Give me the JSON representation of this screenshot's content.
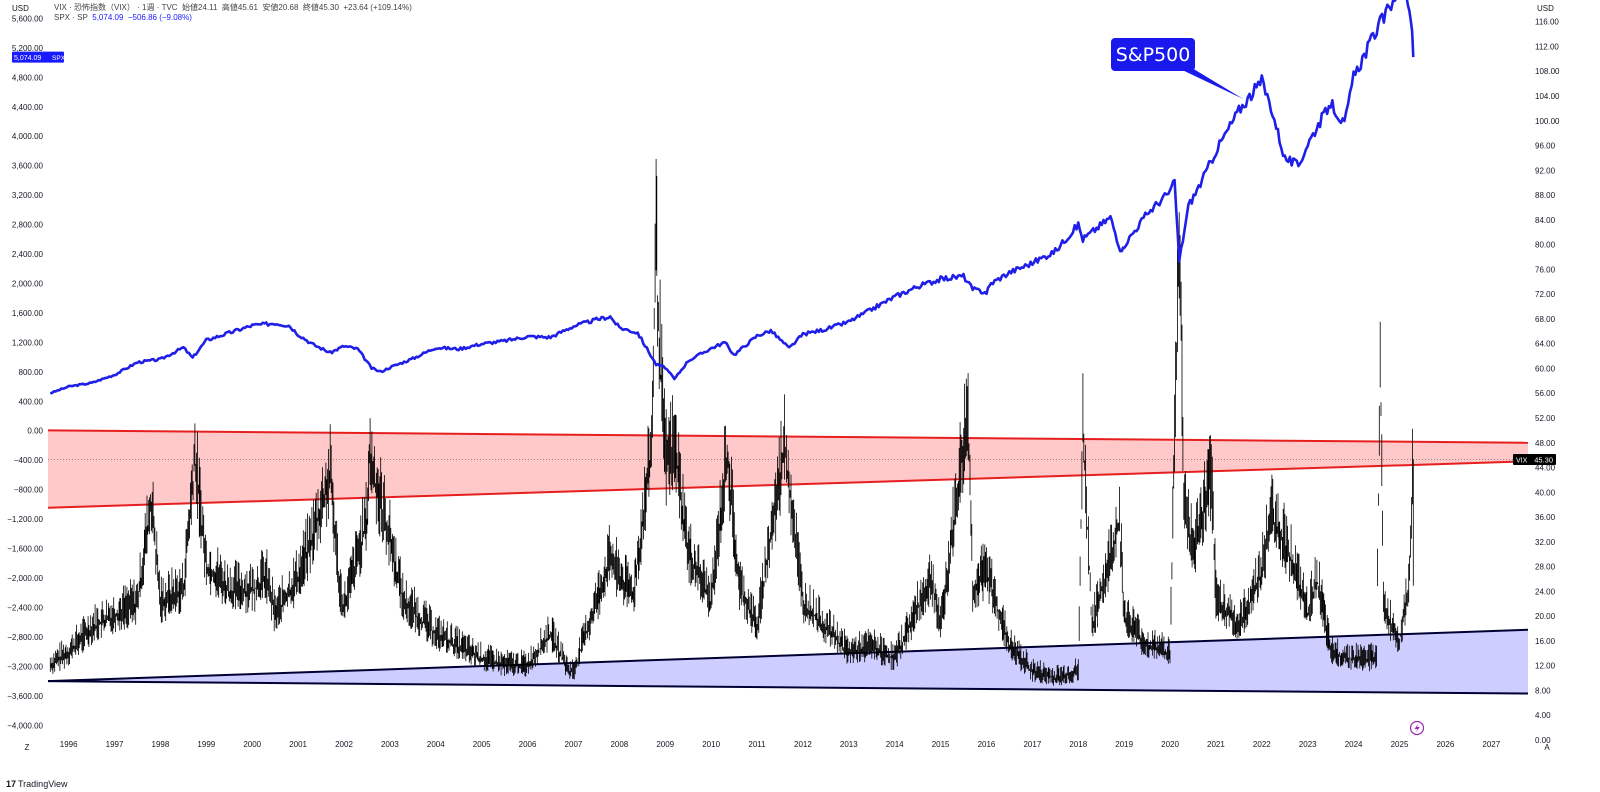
{
  "header": {
    "vix_line": {
      "symbol": "VIX · 恐怖指数（VIX） · 1週 · TVC",
      "open_label": "始値",
      "open": "24.11",
      "high_label": "高値",
      "high": "45.61",
      "low_label": "安値",
      "low": "20.68",
      "close_label": "終値",
      "close": "45.30",
      "change": "+23.64 (+109.14%)"
    },
    "spx_line": {
      "symbol": "SPX · SP",
      "value": "5,074.09",
      "change": "−506.86 (−9.08%)"
    }
  },
  "axes": {
    "left_unit": "USD",
    "right_unit": "USD",
    "left_badge_value": "5,074.09",
    "left_badge_symbol": "SPX",
    "right_badge_symbol": "VIX",
    "right_badge_value": "45.30",
    "bottom_left_label": "Z",
    "bottom_right_label": "A"
  },
  "annotation": {
    "text": "S&P500"
  },
  "branding": {
    "logo_glyph": "17",
    "name": "TradingView"
  },
  "colors": {
    "spx": "#1f1fe8",
    "vix": "#000000",
    "upper_channel": "#e61e1e",
    "upper_fill": "#ffbfbf",
    "lower_channel": "#000033",
    "lower_fill": "#c4c4ff"
  },
  "chart_data": {
    "type": "line",
    "x_ticks": [
      "1996",
      "1997",
      "1998",
      "1999",
      "2000",
      "2001",
      "2002",
      "2003",
      "2004",
      "2005",
      "2006",
      "2007",
      "2008",
      "2009",
      "2010",
      "2011",
      "2012",
      "2013",
      "2014",
      "2015",
      "2016",
      "2017",
      "2018",
      "2019",
      "2020",
      "2021",
      "2022",
      "2023",
      "2024",
      "2025",
      "2026",
      "2027"
    ],
    "left_axis": {
      "ticks": [
        "5,600.00",
        "5,200.00",
        "4,800.00",
        "4,400.00",
        "4,000.00",
        "3,600.00",
        "3,200.00",
        "2,800.00",
        "2,400.00",
        "2,000.00",
        "1,600.00",
        "1,200.00",
        "800.00",
        "400.00",
        "0.00",
        "−400.00",
        "−800.00",
        "−1,200.00",
        "−1,600.00",
        "−2,000.00",
        "−2,400.00",
        "−2,800.00",
        "−3,200.00",
        "−3,600.00",
        "−4,000.00"
      ],
      "range": [
        -4200,
        5850
      ]
    },
    "right_axis": {
      "ticks": [
        "116.00",
        "112.00",
        "108.00",
        "104.00",
        "100.00",
        "96.00",
        "92.00",
        "88.00",
        "84.00",
        "80.00",
        "76.00",
        "72.00",
        "68.00",
        "64.00",
        "60.00",
        "56.00",
        "52.00",
        "48.00",
        "44.00",
        "40.00",
        "36.00",
        "32.00",
        "28.00",
        "24.00",
        "20.00",
        "16.00",
        "12.00",
        "8.00",
        "4.00",
        "0.00"
      ],
      "range": [
        0,
        119.5
      ]
    },
    "series": [
      {
        "name": "SPX",
        "axis": "left",
        "points": [
          [
            1995.6,
            510
          ],
          [
            1996.0,
            600
          ],
          [
            1996.5,
            650
          ],
          [
            1997.0,
            760
          ],
          [
            1997.5,
            930
          ],
          [
            1998.0,
            970
          ],
          [
            1998.5,
            1130
          ],
          [
            1998.7,
            990
          ],
          [
            1999.0,
            1230
          ],
          [
            1999.5,
            1330
          ],
          [
            2000.0,
            1430
          ],
          [
            2000.5,
            1460
          ],
          [
            2000.8,
            1430
          ],
          [
            2001.0,
            1310
          ],
          [
            2001.3,
            1180
          ],
          [
            2001.7,
            1060
          ],
          [
            2002.0,
            1150
          ],
          [
            2002.3,
            1110
          ],
          [
            2002.6,
            850
          ],
          [
            2002.8,
            800
          ],
          [
            2003.0,
            860
          ],
          [
            2003.5,
            980
          ],
          [
            2004.0,
            1130
          ],
          [
            2004.5,
            1110
          ],
          [
            2005.0,
            1180
          ],
          [
            2005.5,
            1220
          ],
          [
            2006.0,
            1280
          ],
          [
            2006.5,
            1270
          ],
          [
            2007.0,
            1420
          ],
          [
            2007.5,
            1510
          ],
          [
            2007.8,
            1550
          ],
          [
            2008.0,
            1400
          ],
          [
            2008.4,
            1330
          ],
          [
            2008.8,
            900
          ],
          [
            2009.0,
            860
          ],
          [
            2009.2,
            700
          ],
          [
            2009.5,
            950
          ],
          [
            2010.0,
            1120
          ],
          [
            2010.3,
            1200
          ],
          [
            2010.5,
            1030
          ],
          [
            2011.0,
            1290
          ],
          [
            2011.3,
            1360
          ],
          [
            2011.7,
            1120
          ],
          [
            2012.0,
            1310
          ],
          [
            2012.5,
            1380
          ],
          [
            2013.0,
            1480
          ],
          [
            2013.5,
            1650
          ],
          [
            2014.0,
            1820
          ],
          [
            2014.5,
            1960
          ],
          [
            2015.0,
            2060
          ],
          [
            2015.5,
            2100
          ],
          [
            2015.7,
            1920
          ],
          [
            2016.0,
            1880
          ],
          [
            2016.1,
            2000
          ],
          [
            2016.5,
            2150
          ],
          [
            2017.0,
            2280
          ],
          [
            2017.5,
            2440
          ],
          [
            2018.0,
            2800
          ],
          [
            2018.1,
            2600
          ],
          [
            2018.7,
            2900
          ],
          [
            2018.95,
            2400
          ],
          [
            2019.0,
            2520
          ],
          [
            2019.5,
            2950
          ],
          [
            2020.0,
            3250
          ],
          [
            2020.1,
            3380
          ],
          [
            2020.2,
            2300
          ],
          [
            2020.4,
            3050
          ],
          [
            2020.7,
            3400
          ],
          [
            2021.0,
            3800
          ],
          [
            2021.5,
            4350
          ],
          [
            2022.0,
            4750
          ],
          [
            2022.2,
            4400
          ],
          [
            2022.5,
            3700
          ],
          [
            2022.8,
            3600
          ],
          [
            2023.0,
            3900
          ],
          [
            2023.5,
            4450
          ],
          [
            2023.8,
            4150
          ],
          [
            2024.0,
            4800
          ],
          [
            2024.5,
            5450
          ],
          [
            2024.7,
            5650
          ],
          [
            2025.05,
            6100
          ],
          [
            2025.15,
            5950
          ],
          [
            2025.25,
            5600
          ],
          [
            2025.3,
            5074
          ]
        ]
      },
      {
        "name": "VIX",
        "axis": "right",
        "points": [
          [
            1995.6,
            12
          ],
          [
            1996.0,
            14
          ],
          [
            1996.5,
            18
          ],
          [
            1997.0,
            20
          ],
          [
            1997.5,
            22
          ],
          [
            1997.8,
            38
          ],
          [
            1998.0,
            22
          ],
          [
            1998.5,
            24
          ],
          [
            1998.75,
            45
          ],
          [
            1999.0,
            28
          ],
          [
            1999.5,
            24
          ],
          [
            2000.0,
            24
          ],
          [
            2000.3,
            26
          ],
          [
            2000.5,
            20
          ],
          [
            2001.0,
            26
          ],
          [
            2001.3,
            32
          ],
          [
            2001.7,
            42
          ],
          [
            2001.9,
            25
          ],
          [
            2002.0,
            21
          ],
          [
            2002.5,
            35
          ],
          [
            2002.55,
            45
          ],
          [
            2002.8,
            38
          ],
          [
            2003.0,
            32
          ],
          [
            2003.3,
            22
          ],
          [
            2004.0,
            17
          ],
          [
            2004.5,
            15
          ],
          [
            2005.0,
            13
          ],
          [
            2005.5,
            12
          ],
          [
            2006.0,
            12
          ],
          [
            2006.5,
            17
          ],
          [
            2006.9,
            11
          ],
          [
            2007.0,
            11
          ],
          [
            2007.5,
            22
          ],
          [
            2007.8,
            29
          ],
          [
            2008.0,
            26
          ],
          [
            2008.3,
            23
          ],
          [
            2008.7,
            46
          ],
          [
            2008.8,
            80
          ],
          [
            2008.85,
            67
          ],
          [
            2009.0,
            44
          ],
          [
            2009.2,
            47
          ],
          [
            2009.5,
            30
          ],
          [
            2010.0,
            22
          ],
          [
            2010.35,
            46
          ],
          [
            2010.6,
            25
          ],
          [
            2011.0,
            18
          ],
          [
            2011.6,
            47
          ],
          [
            2011.8,
            35
          ],
          [
            2012.0,
            22
          ],
          [
            2012.5,
            18
          ],
          [
            2013.0,
            14
          ],
          [
            2013.5,
            15
          ],
          [
            2014.0,
            13
          ],
          [
            2014.8,
            26
          ],
          [
            2015.0,
            18
          ],
          [
            2015.6,
            53
          ],
          [
            2015.7,
            24
          ],
          [
            2016.0,
            27
          ],
          [
            2016.5,
            15
          ],
          [
            2017.0,
            11
          ],
          [
            2017.5,
            10
          ],
          [
            2018.0,
            11
          ],
          [
            2018.1,
            50
          ],
          [
            2018.3,
            18
          ],
          [
            2018.9,
            35
          ],
          [
            2019.0,
            20
          ],
          [
            2019.5,
            15
          ],
          [
            2020.0,
            14
          ],
          [
            2020.2,
            82
          ],
          [
            2020.3,
            40
          ],
          [
            2020.5,
            30
          ],
          [
            2020.9,
            42
          ],
          [
            2021.0,
            23
          ],
          [
            2021.5,
            18
          ],
          [
            2022.0,
            27
          ],
          [
            2022.2,
            36
          ],
          [
            2022.6,
            30
          ],
          [
            2023.0,
            20
          ],
          [
            2023.2,
            26
          ],
          [
            2023.5,
            14
          ],
          [
            2024.0,
            13
          ],
          [
            2024.5,
            13
          ],
          [
            2024.58,
            65
          ],
          [
            2024.65,
            21
          ],
          [
            2025.0,
            16
          ],
          [
            2025.2,
            25
          ],
          [
            2025.3,
            45.3
          ]
        ]
      }
    ],
    "upper_channel": {
      "axis": "right",
      "top_line": [
        [
          1995.55,
          50.0
        ],
        [
          2027.8,
          48.0
        ]
      ],
      "bottom_line": [
        [
          1995.55,
          37.5
        ],
        [
          2027.8,
          45.0
        ]
      ]
    },
    "lower_channel": {
      "axis": "right",
      "top_line": [
        [
          1995.55,
          9.5
        ],
        [
          2027.8,
          17.8
        ]
      ],
      "bottom_line": [
        [
          1995.55,
          9.5
        ],
        [
          2027.8,
          7.5
        ]
      ]
    },
    "annotation_anchor": [
      2021.6,
      103.5
    ],
    "xlim": [
      1995.55,
      2027.8
    ],
    "grid": false,
    "legend": "top-left"
  }
}
